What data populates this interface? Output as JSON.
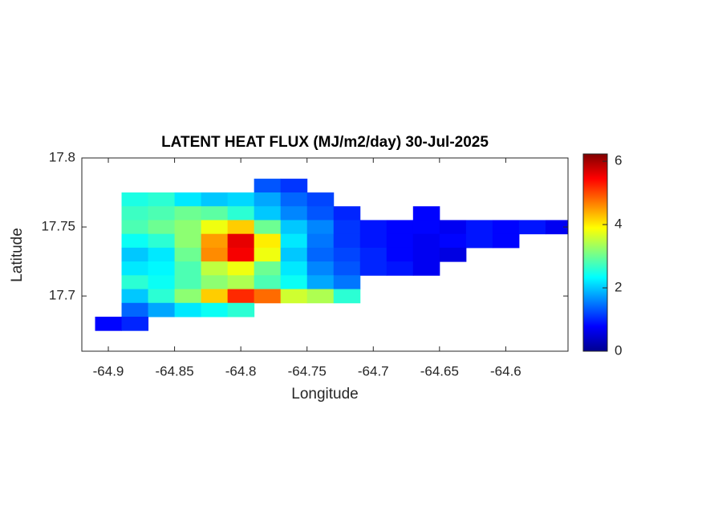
{
  "chart_data": {
    "type": "heatmap",
    "title": "LATENT HEAT FLUX (MJ/m2/day) 30-Jul-2025",
    "x_label": "Longitude",
    "y_label": "Latitude",
    "xlim": [
      -64.92,
      -64.553
    ],
    "ylim": [
      17.66,
      17.8
    ],
    "xticks": [
      -64.9,
      -64.85,
      -64.8,
      -64.75,
      -64.7,
      -64.65,
      -64.6
    ],
    "yticks": [
      17.7,
      17.75,
      17.8
    ],
    "colormap": "jet",
    "clim": [
      0,
      6.23
    ],
    "cticks": [
      0,
      2,
      4,
      6
    ],
    "x": [
      -64.9,
      -64.88,
      -64.86,
      -64.84,
      -64.82,
      -64.8,
      -64.78,
      -64.76,
      -64.74,
      -64.72,
      -64.7,
      -64.68,
      -64.66,
      -64.64,
      -64.62,
      -64.6,
      -64.58,
      -64.56
    ],
    "y": [
      17.78,
      17.77,
      17.76,
      17.75,
      17.74,
      17.73,
      17.72,
      17.71,
      17.7,
      17.69,
      17.68
    ],
    "z": [
      [
        null,
        null,
        null,
        null,
        null,
        null,
        1.3,
        1.1,
        null,
        null,
        null,
        null,
        null,
        null,
        null,
        null,
        null,
        null
      ],
      [
        null,
        2.5,
        2.6,
        2.2,
        2.0,
        2.1,
        1.8,
        1.4,
        1.2,
        null,
        null,
        null,
        null,
        null,
        null,
        null,
        null,
        null
      ],
      [
        null,
        2.7,
        2.8,
        3.0,
        2.9,
        2.6,
        2.0,
        1.6,
        1.3,
        1.0,
        null,
        null,
        0.8,
        null,
        null,
        null,
        null,
        null
      ],
      [
        null,
        2.8,
        3.0,
        3.2,
        3.8,
        4.2,
        3.0,
        2.0,
        1.6,
        1.1,
        0.9,
        0.8,
        0.8,
        0.7,
        0.9,
        0.8,
        0.9,
        0.7
      ],
      [
        null,
        2.4,
        2.6,
        3.2,
        4.5,
        5.6,
        4.0,
        2.2,
        1.5,
        1.1,
        0.9,
        0.8,
        0.7,
        0.8,
        0.9,
        0.8,
        null,
        null
      ],
      [
        null,
        2.0,
        2.2,
        3.0,
        4.6,
        5.5,
        3.8,
        2.0,
        1.4,
        1.2,
        1.0,
        0.8,
        0.7,
        0.6,
        null,
        null,
        null,
        null
      ],
      [
        null,
        2.2,
        2.3,
        2.8,
        3.5,
        3.8,
        3.0,
        2.2,
        1.6,
        1.3,
        1.0,
        0.9,
        0.7,
        null,
        null,
        null,
        null,
        null
      ],
      [
        null,
        2.6,
        2.4,
        2.8,
        3.2,
        3.4,
        2.8,
        2.4,
        1.8,
        1.5,
        null,
        null,
        null,
        null,
        null,
        null,
        null,
        null
      ],
      [
        null,
        2.0,
        2.6,
        3.2,
        4.2,
        5.2,
        4.8,
        3.6,
        3.4,
        2.6,
        null,
        null,
        null,
        null,
        null,
        null,
        null,
        null
      ],
      [
        null,
        1.4,
        1.8,
        2.2,
        2.4,
        2.6,
        null,
        null,
        null,
        null,
        null,
        null,
        null,
        null,
        null,
        null,
        null,
        null
      ],
      [
        0.8,
        1.0,
        null,
        null,
        null,
        null,
        null,
        null,
        null,
        null,
        null,
        null,
        null,
        null,
        null,
        null,
        null,
        null
      ]
    ]
  }
}
